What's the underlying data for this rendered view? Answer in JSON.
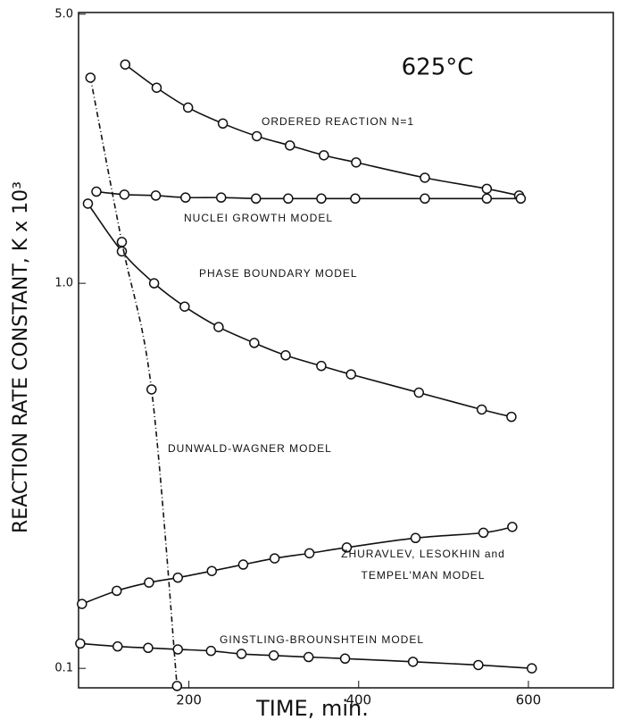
{
  "chart_data": {
    "type": "line",
    "log_y": true,
    "color": "#111111",
    "annotation": "625°C",
    "xlabel": "TIME, min.",
    "ylabel": "REACTION RATE CONSTANT, K x 10³",
    "xlim": [
      70,
      700
    ],
    "xticks": [
      200,
      400,
      600
    ],
    "ylim": [
      0.089,
      5.05
    ],
    "yticks": [
      0.1,
      {
        "value": 1,
        "label": "1.0"
      },
      {
        "value": 5,
        "label": "5.0"
      }
    ],
    "series": [
      {
        "name": "ORDERED REACTION N=1",
        "x": [
          125,
          162,
          199,
          240,
          280,
          319,
          359,
          397,
          478,
          551,
          589
        ],
        "values": [
          3.7,
          3.22,
          2.86,
          2.6,
          2.41,
          2.28,
          2.15,
          2.06,
          1.88,
          1.76,
          1.69
        ]
      },
      {
        "name": "NUCLEI GROWTH MODEL",
        "x": [
          91,
          124,
          161,
          196,
          238,
          279,
          317,
          356,
          396,
          478,
          551,
          591
        ],
        "values": [
          1.73,
          1.7,
          1.69,
          1.67,
          1.67,
          1.66,
          1.66,
          1.66,
          1.66,
          1.66,
          1.66,
          1.66
        ]
      },
      {
        "name": "PHASE BOUNDARY MODEL",
        "x": [
          81,
          121,
          159,
          195,
          235,
          277,
          314,
          356,
          391,
          471,
          545,
          580
        ],
        "values": [
          1.61,
          1.21,
          1.0,
          0.87,
          0.77,
          0.7,
          0.65,
          0.61,
          0.58,
          0.52,
          0.47,
          0.45
        ]
      },
      {
        "name": "DUNWALD-WAGNER MODEL",
        "x": [
          84,
          121,
          156,
          186
        ],
        "values": [
          3.42,
          1.28,
          0.53,
          0.09
        ],
        "dashed": true
      },
      {
        "name": "ZHURAVLEV, LESOKHIN and TEMPEL'MAN MODEL",
        "x": [
          74,
          115,
          153,
          187,
          227,
          264,
          301,
          342,
          386,
          467,
          547,
          581
        ],
        "values": [
          0.147,
          0.159,
          0.167,
          0.172,
          0.179,
          0.186,
          0.193,
          0.199,
          0.206,
          0.218,
          0.225,
          0.233
        ]
      },
      {
        "name": "GINSTLING-BROUNSHTEIN MODEL",
        "x": [
          72,
          116,
          152,
          187,
          226,
          262,
          300,
          341,
          384,
          464,
          541,
          604
        ],
        "values": [
          0.116,
          0.114,
          0.113,
          0.112,
          0.111,
          0.109,
          0.108,
          0.107,
          0.106,
          0.104,
          0.102,
          0.1
        ]
      }
    ]
  }
}
